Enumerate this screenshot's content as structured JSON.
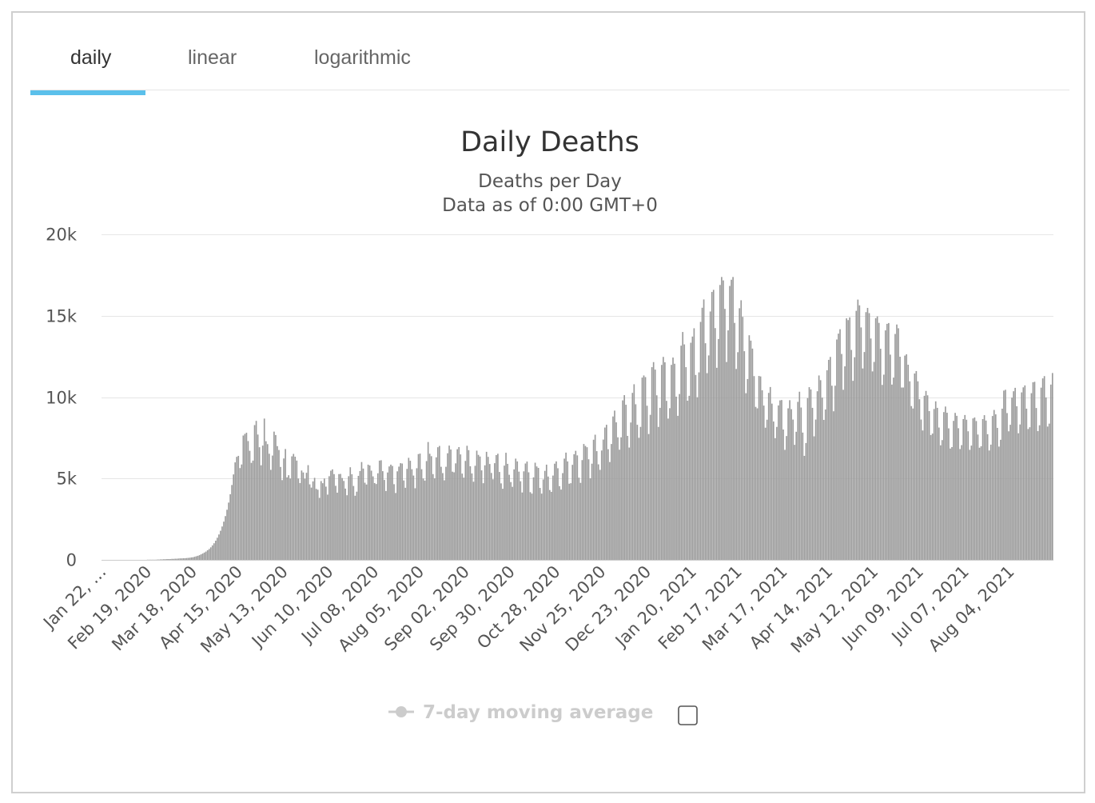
{
  "tabs": [
    {
      "label": "daily",
      "active": true
    },
    {
      "label": "linear",
      "active": false
    },
    {
      "label": "logarithmic",
      "active": false
    }
  ],
  "chart": {
    "title": "Daily Deaths",
    "subtitle_line1": "Deaths per Day",
    "subtitle_line2": "Data as of 0:00 GMT+0",
    "legend_label": "7-day moving average",
    "legend_checked": false
  },
  "colors": {
    "bar": "#9a9a9a",
    "accent": "#5bc0eb",
    "grid": "#e6e6e6",
    "legend_disabled": "#cccccc"
  },
  "chart_data": {
    "type": "bar",
    "x_start_date": "Jan 22, 2020",
    "x_interval_days": 1,
    "x_tick_labels": [
      "Jan 22, …",
      "Feb 19, 2020",
      "Mar 18, 2020",
      "Apr 15, 2020",
      "May 13, 2020",
      "Jun 10, 2020",
      "Jul 08, 2020",
      "Aug 05, 2020",
      "Sep 02, 2020",
      "Sep 30, 2020",
      "Oct 28, 2020",
      "Nov 25, 2020",
      "Dec 23, 2020",
      "Jan 20, 2021",
      "Feb 17, 2021",
      "Mar 17, 2021",
      "Apr 14, 2021",
      "May 12, 2021",
      "Jun 09, 2021",
      "Jul 07, 2021",
      "Aug 04, 2021"
    ],
    "y_tick_labels": [
      "0",
      "5k",
      "10k",
      "15k",
      "20k"
    ],
    "y_ticks": [
      0,
      5000,
      10000,
      15000,
      20000
    ],
    "ylim": [
      0,
      20000
    ],
    "legend_placement": "bottom",
    "grid": true,
    "series": [
      {
        "name": "Deaths per Day",
        "values": [
          0,
          0,
          0,
          0,
          0,
          0,
          0,
          0,
          0,
          0,
          0,
          0,
          0,
          0,
          0,
          0,
          0,
          0,
          0,
          0,
          0,
          0,
          0,
          0,
          0,
          0,
          0,
          0,
          10,
          10,
          10,
          10,
          10,
          10,
          20,
          20,
          30,
          30,
          40,
          40,
          50,
          50,
          50,
          60,
          60,
          70,
          70,
          80,
          90,
          90,
          100,
          100,
          110,
          120,
          130,
          150,
          160,
          190,
          220,
          250,
          290,
          340,
          390,
          450,
          510,
          590,
          670,
          770,
          890,
          1020,
          1180,
          1360,
          1560,
          1790,
          2050,
          2350,
          2690,
          3080,
          3520,
          4030,
          4600,
          5250,
          5990,
          6330,
          6390,
          5640,
          5860,
          7640,
          7740,
          7810,
          7300,
          6700,
          5960,
          6100,
          8280,
          8540,
          7700,
          6920,
          5810,
          7020,
          8680,
          7290,
          7110,
          6520,
          5530,
          6410,
          7880,
          7670,
          6990,
          6750,
          5710,
          4900,
          6230,
          6810,
          5070,
          5200,
          5000,
          6360,
          6510,
          6340,
          6100,
          5000,
          4720,
          5490,
          5370,
          4990,
          5350,
          5820,
          4640,
          4440,
          4820,
          5040,
          4360,
          4310,
          3810,
          4840,
          4710,
          5000,
          4500,
          4010,
          5140,
          5480,
          5560,
          5270,
          4550,
          4130,
          5270,
          5280,
          5030,
          4850,
          4380,
          3970,
          5140,
          5690,
          5260,
          4540,
          3940,
          4190,
          5160,
          5460,
          6010,
          5610,
          4740,
          4630,
          5850,
          5800,
          5480,
          5130,
          4720,
          4660,
          5320,
          6100,
          6120,
          5450,
          4910,
          4230,
          5370,
          5740,
          5850,
          5770,
          4650,
          4110,
          5440,
          5730,
          5940,
          5920,
          4880,
          4430,
          5590,
          6270,
          6090,
          5570,
          5180,
          4400,
          5630,
          6500,
          6530,
          5570,
          5000,
          4870,
          6070,
          7240,
          6520,
          6370,
          5270,
          5010,
          6300,
          6920,
          7000,
          5720,
          5330,
          4890,
          5720,
          6550,
          7020,
          6780,
          5420,
          5380,
          5930,
          6800,
          6930,
          6480,
          5300,
          5050,
          6080,
          7010,
          6740,
          5750,
          5310,
          4800,
          5780,
          6710,
          6450,
          6350,
          5500,
          4710,
          5810,
          6640,
          6330,
          5890,
          5340,
          4950,
          5940,
          6440,
          6520,
          5400,
          4700,
          4370,
          5790,
          6580,
          5900,
          5230,
          4780,
          4490,
          5560,
          6220,
          6050,
          5420,
          4830,
          4140,
          5440,
          5920,
          6040,
          5380,
          4160,
          4070,
          5070,
          5970,
          5740,
          5650,
          4420,
          4070,
          4940,
          5470,
          5850,
          5120,
          4290,
          4180,
          5180,
          5910,
          6050,
          5630,
          4530,
          4320,
          5330,
          6220,
          6590,
          6050,
          4680,
          4710,
          5840,
          6490,
          6700,
          6420,
          5050,
          4730,
          6130,
          7120,
          7000,
          6920,
          6180,
          5010,
          5910,
          7380,
          7690,
          6680,
          5870,
          5530,
          6720,
          7390,
          8130,
          8300,
          6800,
          6010,
          7120,
          8810,
          9170,
          8450,
          7530,
          6770,
          7530,
          9800,
          10120,
          9530,
          7620,
          6900,
          8440,
          10260,
          10790,
          9560,
          8300,
          7500,
          8170,
          11200,
          11330,
          11230,
          9470,
          7730,
          8910,
          11840,
          12150,
          11690,
          10110,
          8170,
          9340,
          11980,
          12470,
          12140,
          9770,
          8680,
          9320,
          11980,
          12430,
          12050,
          10030,
          8850,
          10190,
          13160,
          14000,
          13240,
          11840,
          9780,
          10080,
          13340,
          13720,
          14230,
          11360,
          9990,
          11520,
          14620,
          15490,
          16000,
          13310,
          11470,
          12560,
          15260,
          16460,
          16590,
          14240,
          11800,
          13570,
          16890,
          17380,
          17170,
          15420,
          12160,
          14100,
          16830,
          17210,
          17380,
          14560,
          11730,
          12760,
          15460,
          15950,
          14930,
          12820,
          10240,
          11110,
          13800,
          13470,
          12980,
          11290,
          9400,
          9310,
          11300,
          11270,
          10420,
          9480,
          8120,
          8610,
          10260,
          10620,
          9600,
          8500,
          7480,
          8170,
          9490,
          9800,
          9820,
          8010,
          6760,
          7610,
          9310,
          9810,
          9260,
          8620,
          7070,
          7870,
          9710,
          10330,
          9360,
          7820,
          6390,
          7180,
          9940,
          10610,
          10470,
          9340,
          7590,
          8620,
          10360,
          11330,
          11040,
          9970,
          8600,
          9240,
          11650,
          12290,
          12470,
          10700,
          9130,
          10700,
          13540,
          13900,
          14170,
          12650,
          10450,
          11890,
          14840,
          14730,
          14900,
          12900,
          11000,
          12450,
          15300,
          15990,
          15640,
          14280,
          11760,
          12770,
          15220,
          15480,
          15160,
          13600,
          11580,
          12160,
          14850,
          14960,
          14560,
          12970,
          10750,
          11380,
          14100,
          14500,
          14550,
          12610,
          10770,
          11200,
          13880,
          14460,
          14230,
          12480,
          10590,
          10590,
          12550,
          12630,
          11990,
          10970,
          9450,
          9300,
          11450,
          11600,
          10970,
          9870,
          8620,
          7950,
          10080,
          10380,
          10110,
          9140,
          7670,
          7760,
          9270,
          9740,
          9340,
          8130,
          7040,
          7360,
          9080,
          9420,
          9040,
          8080,
          6840,
          6930,
          8540,
          9030,
          8850,
          8090,
          6810,
          7050,
          8650,
          8900,
          8610,
          7900,
          6760,
          7020,
          8690,
          8750,
          8530,
          7700,
          6890,
          6980,
          8650,
          8890,
          8560,
          7720,
          6720,
          7080,
          8840,
          9210,
          8940,
          8110,
          6960,
          7380,
          9290,
          10400,
          10450,
          9020,
          7900,
          8300,
          9970,
          10360,
          10570,
          9440,
          7780,
          8320,
          10290,
          10600,
          10720,
          9290,
          8040,
          8150,
          10240,
          10910,
          10940,
          9330,
          7910,
          8270,
          10580,
          11150,
          11290,
          9980,
          8190,
          8370,
          10770,
          11480
        ]
      }
    ]
  }
}
